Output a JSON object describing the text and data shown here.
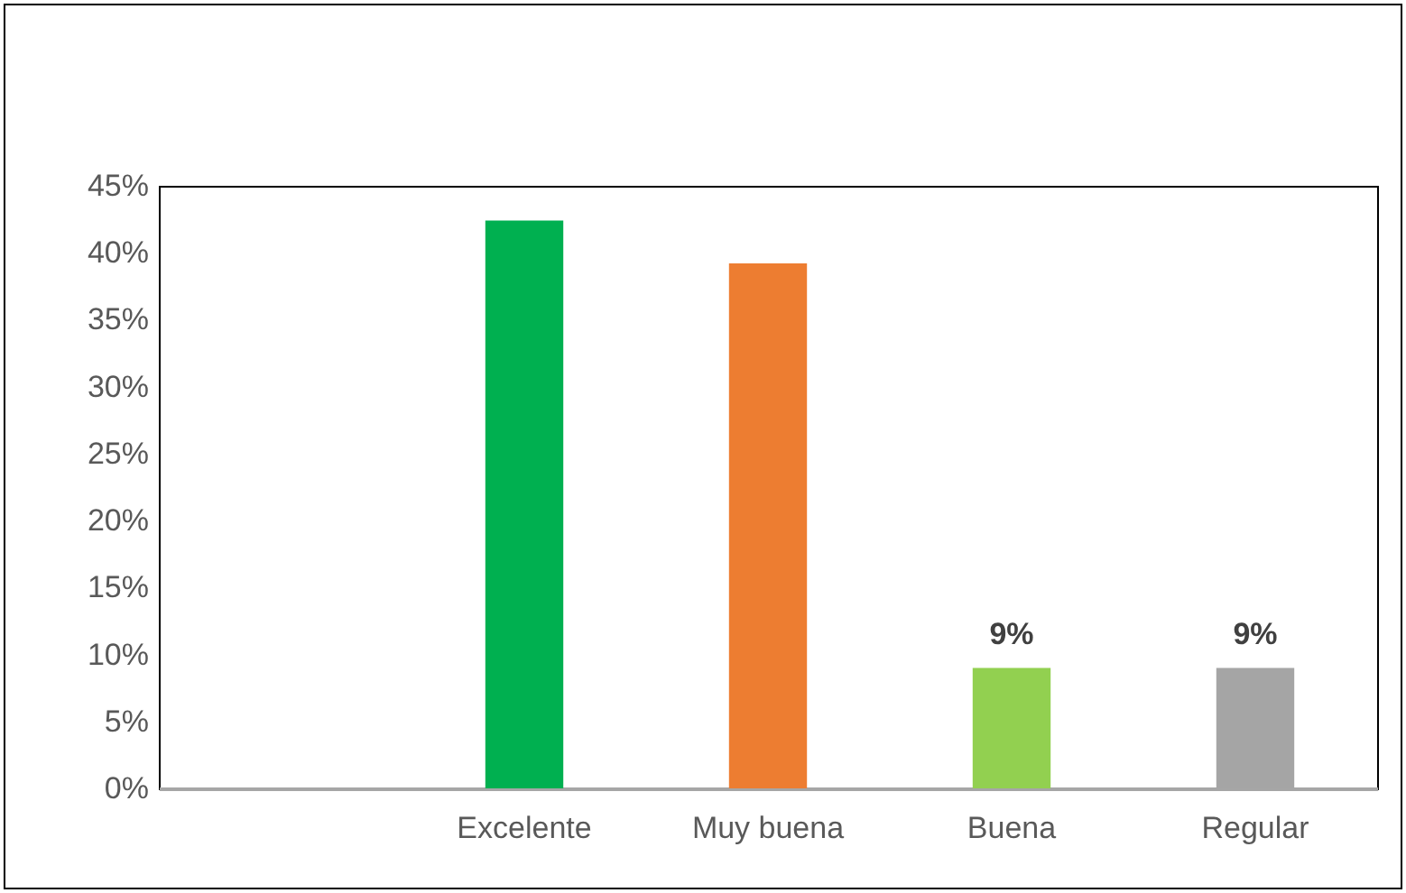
{
  "chart_data": {
    "type": "bar",
    "categories": [
      null,
      "Excelente",
      "Muy buena",
      "Buena",
      "Regular"
    ],
    "values": [
      null,
      42.4,
      39.2,
      9,
      9
    ],
    "colors": [
      "#00b050",
      "#00b050",
      "#ed7d31",
      "#92d050",
      "#a5a5a5"
    ],
    "value_labels": [
      null,
      null,
      null,
      "9%",
      "9%"
    ],
    "ylim": [
      0,
      45
    ],
    "yticks": [
      {
        "value": 0,
        "label": "0%"
      },
      {
        "value": 5,
        "label": "5%"
      },
      {
        "value": 10,
        "label": "10%"
      },
      {
        "value": 15,
        "label": "15%"
      },
      {
        "value": 20,
        "label": "20%"
      },
      {
        "value": 25,
        "label": "25%"
      },
      {
        "value": 30,
        "label": "30%"
      },
      {
        "value": 35,
        "label": "35%"
      },
      {
        "value": 40,
        "label": "40%"
      },
      {
        "value": 45,
        "label": "45%"
      }
    ],
    "grid": false
  }
}
